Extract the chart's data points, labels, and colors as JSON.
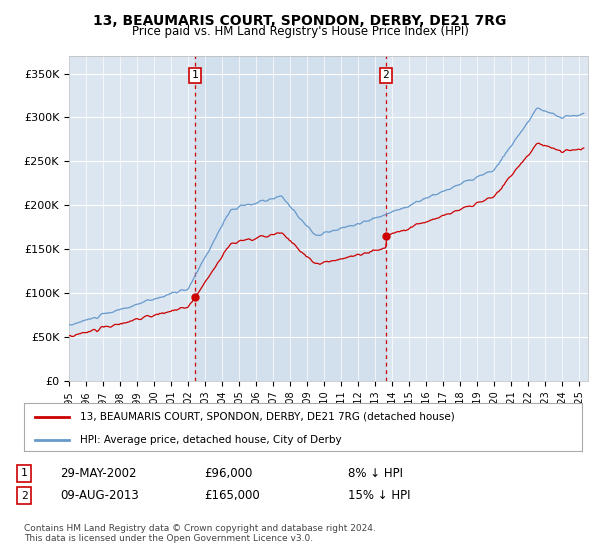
{
  "title": "13, BEAUMARIS COURT, SPONDON, DERBY, DE21 7RG",
  "subtitle": "Price paid vs. HM Land Registry's House Price Index (HPI)",
  "legend_line1": "13, BEAUMARIS COURT, SPONDON, DERBY, DE21 7RG (detached house)",
  "legend_line2": "HPI: Average price, detached house, City of Derby",
  "sale1_date": "29-MAY-2002",
  "sale1_price": "£96,000",
  "sale1_hpi": "8% ↓ HPI",
  "sale2_date": "09-AUG-2013",
  "sale2_price": "£165,000",
  "sale2_hpi": "15% ↓ HPI",
  "footer": "Contains HM Land Registry data © Crown copyright and database right 2024.\nThis data is licensed under the Open Government Licence v3.0.",
  "sale_color": "#cc0000",
  "hpi_color": "#6699cc",
  "bg_color": "#dce6f0",
  "bg_between_color": "#ccdaec",
  "ylim": [
    0,
    370000
  ],
  "xlim_start": 1995.0,
  "xlim_end": 2025.5,
  "sale1_x": 2002.41,
  "sale2_x": 2013.61,
  "sale1_y": 96000,
  "sale2_y": 165000,
  "vline_color": "#cc0000",
  "marker_color": "#cc0000",
  "yticks": [
    0,
    50000,
    100000,
    150000,
    200000,
    250000,
    300000,
    350000
  ],
  "ylabels": [
    "£0",
    "£50K",
    "£100K",
    "£150K",
    "£200K",
    "£250K",
    "£300K",
    "£350K"
  ]
}
